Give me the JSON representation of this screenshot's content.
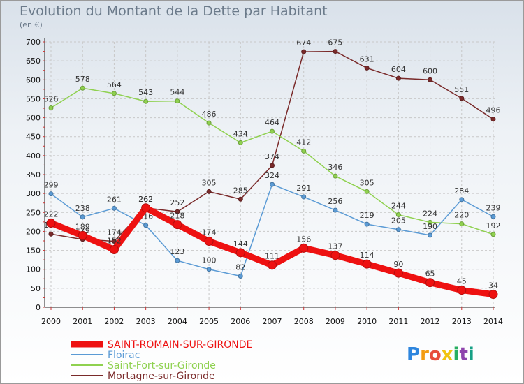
{
  "chart_data": {
    "type": "line",
    "title": "Evolution du Montant de la Dette par Habitant",
    "subtitle": "(en €)",
    "x": [
      "2000",
      "2001",
      "2002",
      "2003",
      "2004",
      "2005",
      "2006",
      "2007",
      "2008",
      "2009",
      "2010",
      "2011",
      "2012",
      "2013",
      "2014"
    ],
    "ylim": [
      0,
      700
    ],
    "yticks": [
      0,
      50,
      100,
      150,
      200,
      250,
      300,
      350,
      400,
      450,
      500,
      550,
      600,
      650,
      700
    ],
    "grid": true,
    "legend_position": "bottom-left",
    "series": [
      {
        "name": "Mortagne-sur-Gironde",
        "color": "#7a2a2a",
        "values": [
          193,
          179,
          174,
          262,
          252,
          305,
          285,
          374,
          674,
          675,
          631,
          604,
          600,
          551,
          496
        ]
      },
      {
        "name": "Saint-Fort-sur-Gironde",
        "color": "#8fd14f",
        "values": [
          526,
          578,
          564,
          543,
          544,
          486,
          434,
          464,
          412,
          346,
          305,
          244,
          224,
          220,
          192
        ]
      },
      {
        "name": "Floirac",
        "color": "#5b9bd5",
        "values": [
          299,
          238,
          261,
          216,
          123,
          100,
          82,
          324,
          291,
          256,
          219,
          205,
          190,
          284,
          239
        ]
      },
      {
        "name": "SAINT-ROMAIN-SUR-GIRONDE",
        "color": "#ee1111",
        "values": [
          222,
          189,
          152,
          262,
          218,
          174,
          144,
          111,
          156,
          137,
          114,
          90,
          65,
          45,
          34
        ]
      }
    ]
  },
  "brand": {
    "text": "Proxiti"
  }
}
